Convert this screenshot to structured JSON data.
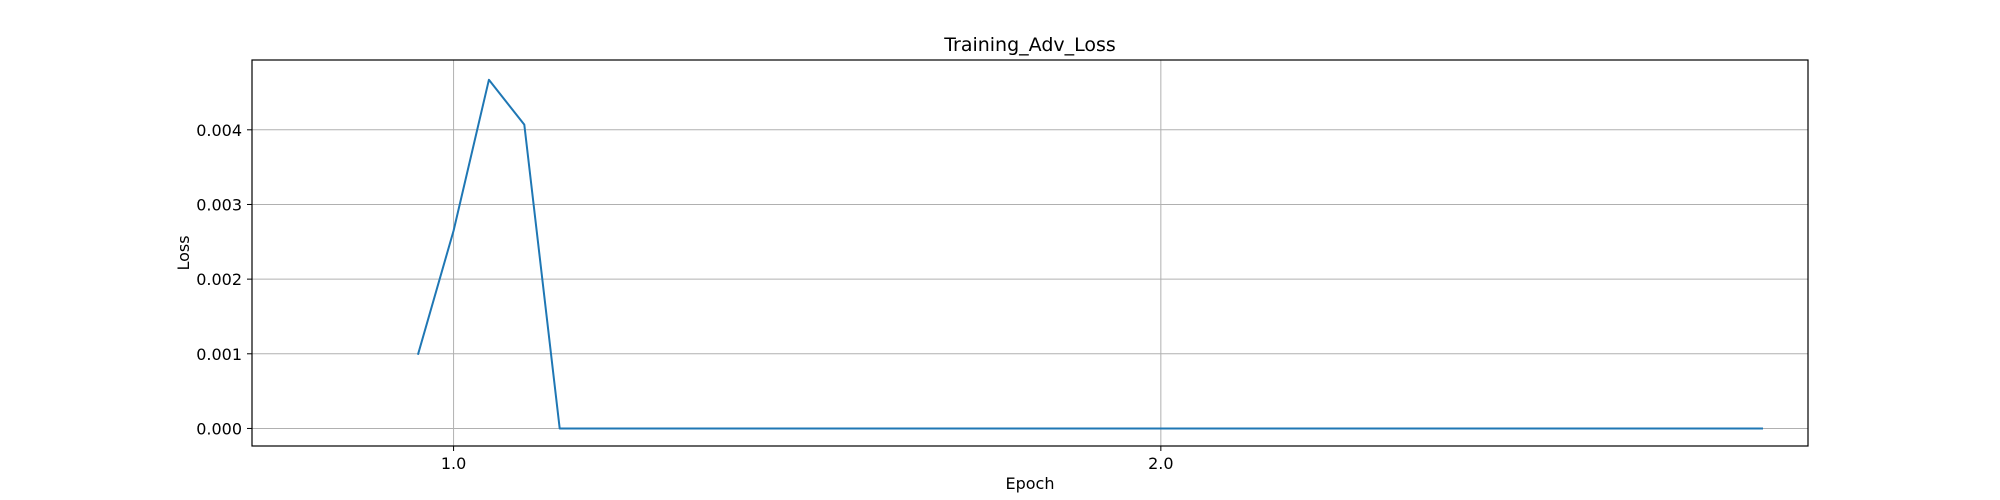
{
  "chart_data": {
    "type": "line",
    "title": "Training_Adv_Loss",
    "xlabel": "Epoch",
    "ylabel": "Loss",
    "xlim": [
      0.715,
      2.915
    ],
    "ylim": [
      -0.000235,
      0.004935
    ],
    "x_ticks": [
      1.0,
      2.0
    ],
    "x_tick_labels": [
      "1.0",
      "2.0"
    ],
    "y_ticks": [
      0.0,
      0.001,
      0.002,
      0.003,
      0.004
    ],
    "y_tick_labels": [
      "0.000",
      "0.001",
      "0.002",
      "0.003",
      "0.004"
    ],
    "grid": true,
    "legend": "none",
    "series": [
      {
        "color": "#1f77b4",
        "x": [
          0.95,
          1.0,
          1.05,
          1.1,
          1.15,
          1.2,
          1.3,
          1.4,
          1.5,
          1.6,
          1.7,
          1.8,
          1.9,
          2.0,
          2.1,
          2.2,
          2.3,
          2.4,
          2.5,
          2.6,
          2.7,
          2.8,
          2.85
        ],
        "values": [
          0.001,
          0.00265,
          0.00467,
          0.00407,
          0.0,
          0.0,
          0.0,
          0.0,
          0.0,
          0.0,
          0.0,
          0.0,
          0.0,
          0.0,
          0.0,
          0.0,
          0.0,
          0.0,
          0.0,
          0.0,
          0.0,
          0.0,
          0.0
        ]
      }
    ]
  }
}
